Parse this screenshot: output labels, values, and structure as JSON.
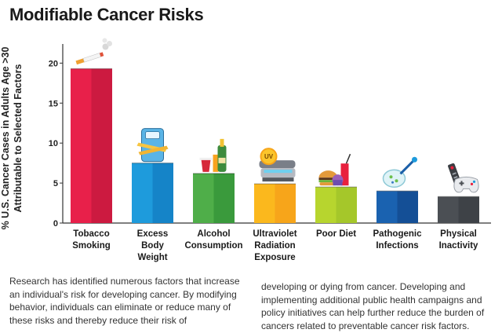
{
  "title": "Modifiable Cancer Risks",
  "chart_data": {
    "type": "bar",
    "title": "Modifiable Cancer Risks",
    "ylabel": "% U.S. Cancer Cases in Adults Age >30 Attributable to Selected Factors",
    "xlabel": "",
    "ylim": [
      0,
      22
    ],
    "yticks": [
      0,
      5,
      10,
      15,
      20
    ],
    "grid": false,
    "categories": [
      "Tobacco\nSmoking",
      "Excess\nBody\nWeight",
      "Alcohol\nConsumption",
      "Ultraviolet\nRadiation\nExposure",
      "Poor Diet",
      "Pathogenic\nInfections",
      "Physical\nInactivity"
    ],
    "values": [
      19.3,
      7.5,
      6.2,
      4.9,
      4.5,
      4.0,
      3.3
    ],
    "colors": [
      [
        "#e8204a",
        "#cc1a40"
      ],
      [
        "#1e9bdc",
        "#1584c8"
      ],
      [
        "#4fae49",
        "#3a9a3c"
      ],
      [
        "#fbb81d",
        "#f7a51a"
      ],
      [
        "#b7d52e",
        "#a5c72a"
      ],
      [
        "#1a62b0",
        "#144f96"
      ],
      [
        "#4b4f54",
        "#3e4247"
      ]
    ]
  },
  "icons": [
    "cigarette-icon",
    "scale-icon",
    "alcohol-icon",
    "tanning-bed-icon",
    "junk-food-icon",
    "petri-dish-icon",
    "remote-gamepad-icon"
  ],
  "footer": {
    "col1": "Research has identified numerous factors that increase an individual's risk for developing cancer. By modifying behavior, individuals can eliminate or reduce many of these risks and thereby reduce their risk of",
    "col2": "developing or dying from cancer. Developing and implementing additional public health campaigns and policy initiatives can help further reduce the burden of cancers related to preventable cancer risk factors."
  }
}
